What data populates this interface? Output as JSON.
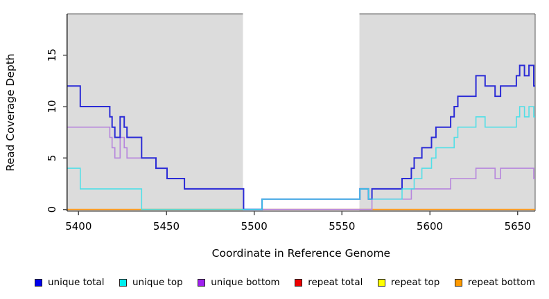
{
  "chart_data": {
    "type": "line",
    "title": "",
    "xlabel": "Coordinate in Reference Genome",
    "ylabel": "Read Coverage Depth",
    "x_ticks": [
      5400,
      5450,
      5500,
      5550,
      5600,
      5650
    ],
    "y_ticks": [
      0,
      5,
      10,
      15
    ],
    "xlim": [
      5393.5,
      5660
    ],
    "ylim": [
      0,
      19
    ],
    "grid": false,
    "legend_position": "bottom",
    "shade_color": "#dcdcdc",
    "shaded_regions": [
      {
        "from": 5393.5,
        "to": 5493.6
      },
      {
        "from": 5560.0,
        "to": 5660.0
      }
    ],
    "series": [
      {
        "name": "repeat total",
        "color": "#d42a3c",
        "width": 1.2,
        "opacity": 1,
        "points": [
          [
            5393.5,
            0
          ]
        ]
      },
      {
        "name": "repeat top",
        "color": "#f2ee30",
        "width": 1.2,
        "opacity": 1,
        "points": [
          [
            5393.5,
            0
          ]
        ]
      },
      {
        "name": "repeat bottom",
        "color": "#ff9a1a",
        "width": 1.8,
        "opacity": 1,
        "points": [
          [
            5393.5,
            0
          ]
        ]
      },
      {
        "name": "unique bottom",
        "color": "#b685dd",
        "width": 1.6,
        "opacity": 1,
        "points": [
          [
            5393.5,
            8
          ],
          [
            5417.8,
            7
          ],
          [
            5419.1,
            6
          ],
          [
            5420.7,
            5
          ],
          [
            5423.7,
            7
          ],
          [
            5426,
            6
          ],
          [
            5427.6,
            5
          ],
          [
            5444.1,
            4
          ],
          [
            5450.4,
            3
          ],
          [
            5460.3,
            2
          ],
          [
            5494,
            0
          ],
          [
            5567.1,
            1
          ],
          [
            5589.5,
            2
          ],
          [
            5611.9,
            3
          ],
          [
            5626.3,
            4
          ],
          [
            5637.2,
            3
          ],
          [
            5640.3,
            4
          ],
          [
            5659.2,
            3
          ]
        ]
      },
      {
        "name": "unique total",
        "color": "#2b2bd6",
        "width": 2,
        "opacity": 1,
        "points": [
          [
            5393.5,
            12
          ],
          [
            5401,
            10
          ],
          [
            5417.8,
            9
          ],
          [
            5419.1,
            8
          ],
          [
            5420.7,
            7
          ],
          [
            5423.7,
            9
          ],
          [
            5426,
            8
          ],
          [
            5427.6,
            7
          ],
          [
            5435.9,
            5
          ],
          [
            5444.1,
            4
          ],
          [
            5450.4,
            3
          ],
          [
            5460.3,
            2
          ],
          [
            5494,
            0
          ],
          [
            5504.5,
            1
          ],
          [
            5560.2,
            2
          ],
          [
            5565.1,
            1
          ],
          [
            5567.1,
            2
          ],
          [
            5584.2,
            3
          ],
          [
            5589.5,
            4
          ],
          [
            5591.1,
            5
          ],
          [
            5595.5,
            6
          ],
          [
            5601,
            7
          ],
          [
            5603.5,
            8
          ],
          [
            5611.9,
            9
          ],
          [
            5613.9,
            10
          ],
          [
            5616,
            11
          ],
          [
            5626.3,
            13
          ],
          [
            5631.5,
            12
          ],
          [
            5637.2,
            11
          ],
          [
            5640.3,
            12
          ],
          [
            5649.3,
            13
          ],
          [
            5651.2,
            14
          ],
          [
            5653.9,
            13
          ],
          [
            5656.5,
            14
          ],
          [
            5659.2,
            12
          ]
        ]
      },
      {
        "name": "unique top",
        "color": "#3fdfe8",
        "width": 1.6,
        "opacity": 0.88,
        "points": [
          [
            5393.5,
            4
          ],
          [
            5401,
            2
          ],
          [
            5435.9,
            0
          ],
          [
            5504.5,
            1
          ],
          [
            5560.2,
            2
          ],
          [
            5565.1,
            1
          ],
          [
            5584.2,
            2
          ],
          [
            5591.1,
            3
          ],
          [
            5595.5,
            4
          ],
          [
            5601,
            5
          ],
          [
            5603.5,
            6
          ],
          [
            5613.9,
            7
          ],
          [
            5616,
            8
          ],
          [
            5626.3,
            9
          ],
          [
            5631.5,
            8
          ],
          [
            5649.3,
            9
          ],
          [
            5651.2,
            10
          ],
          [
            5653.9,
            9
          ],
          [
            5656.5,
            10
          ],
          [
            5659.2,
            9
          ]
        ]
      }
    ],
    "legend": [
      {
        "label": "unique total",
        "color": "#0000ee"
      },
      {
        "label": "unique top",
        "color": "#00eeee"
      },
      {
        "label": "unique bottom",
        "color": "#a020f0"
      },
      {
        "label": "repeat total",
        "color": "#ee0000"
      },
      {
        "label": "repeat top",
        "color": "#ffff00"
      },
      {
        "label": "repeat bottom",
        "color": "#ff9a00"
      }
    ]
  }
}
